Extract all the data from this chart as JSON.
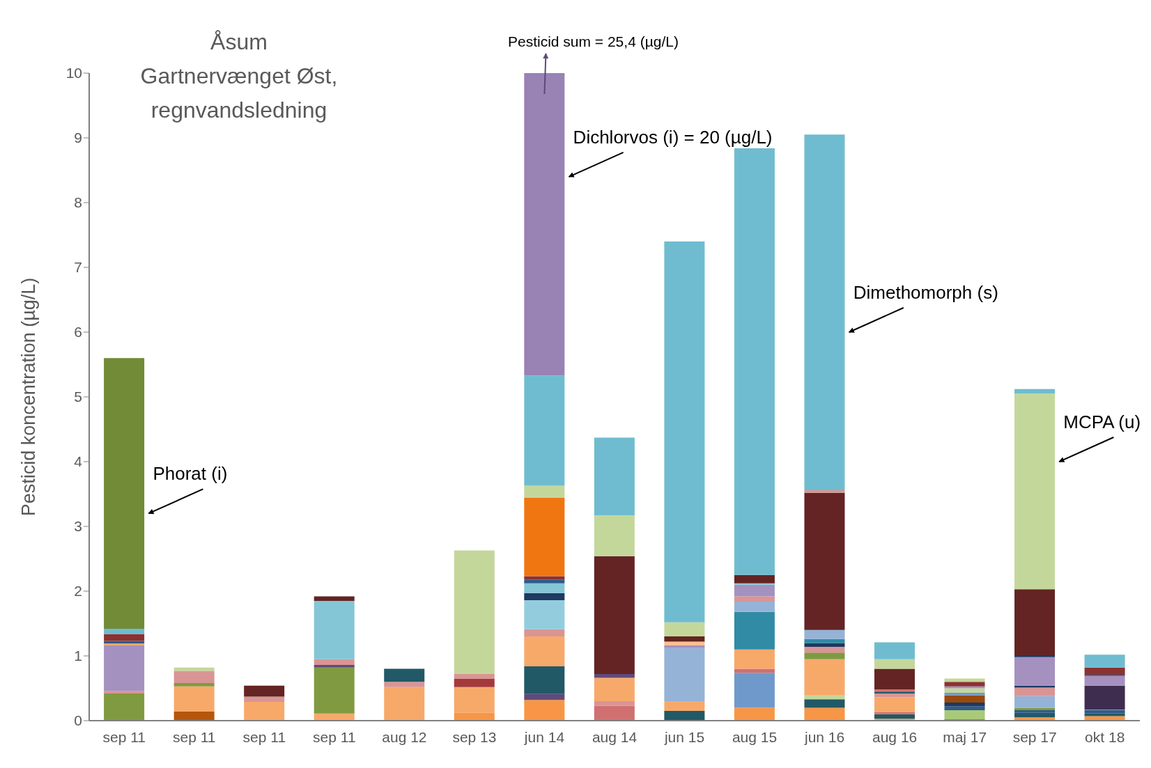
{
  "chart_data": {
    "type": "bar",
    "title": "Åsum\nGartnervænget Øst,\nregnvandsledning",
    "ylabel": "Pesticid koncentration  (µg/L)",
    "categories": [
      "sep 11",
      "sep 11",
      "sep 11",
      "sep 11",
      "aug 12",
      "sep 13",
      "jun 14",
      "aug 14",
      "jun 15",
      "aug 15",
      "jun 16",
      "aug 16",
      "maj 17",
      "sep 17",
      "okt 18"
    ],
    "stacked": true,
    "ylim": [
      0,
      10
    ],
    "yticks": [
      0,
      1,
      2,
      3,
      4,
      5,
      6,
      7,
      8,
      9,
      10
    ],
    "grid": false,
    "legend": false,
    "annotations": [
      "Phorat (i)",
      {
        "text": "Pesticid sum = 25,4 (µg/L)",
        "x": "jun 14",
        "y": 10
      },
      "Dichlorvos (i) = 20 (µg/L)",
      "Dimethomorph (s)",
      "MCPA (u)"
    ],
    "series": [
      {
        "values": [
          0.42,
          0.14,
          0.29,
          0.11,
          0.52,
          0.12,
          0.32,
          0.23,
          0.15,
          0.2,
          0.2,
          0.03,
          0.02,
          0.05,
          0.07
        ],
        "colors": [
          "#7f9a41",
          "#b5560c",
          "#f7a96a",
          "#f7a96a",
          "#f7a96a",
          "#f79646",
          "#f79646",
          "#d07070",
          "#215967",
          "#f79646",
          "#f79646",
          "#f79646",
          "#215967",
          "#f79646",
          "#f79646"
        ]
      },
      {
        "values": [
          0.04,
          0.39,
          0.08,
          0.71,
          0.08,
          0.4,
          0.09,
          0.07,
          0.15,
          0.54,
          0.13,
          0.07,
          0.14,
          0.07,
          0.04
        ],
        "colors": [
          "#d99594",
          "#f7a96a",
          "#d99594",
          "#7f9a41",
          "#d99594",
          "#f7a96a",
          "#604a7b",
          "#d99594",
          "#f7a96a",
          "#7099cb",
          "#215967",
          "#215967",
          "#a9c97a",
          "#215967",
          "#215967"
        ]
      },
      {
        "values": [
          0.7,
          0.05,
          0.17,
          0.04,
          0.2,
          0.13,
          0.43,
          0.36,
          0.82,
          0.06,
          0.06,
          0.03,
          0.06,
          0.04,
          0.05
        ],
        "colors": [
          "#a491bf",
          "#7f9a41",
          "#632423",
          "#604a7b",
          "#215967",
          "#a5393a",
          "#215967",
          "#f7a96a",
          "#95b3d7",
          "#d07070",
          "#c4d79b",
          "#d07070",
          "#2e5c8a",
          "#2e5c8a",
          "#2e5c8a"
        ]
      },
      {
        "values": [
          0.03,
          0.19,
          null,
          0.09,
          null,
          0.07,
          0.46,
          0.06,
          0.04,
          0.3,
          0.56,
          0.23,
          0.06,
          0.04,
          0.01
        ],
        "colors": [
          "#f7a96a",
          "#d99594",
          null,
          "#d99594",
          null,
          "#d99594",
          "#f7a96a",
          "#604a7b",
          "#a491bf",
          "#f7a96a",
          "#f7a96a",
          "#f7a96a",
          "#1f3864",
          "#7f9a41",
          "#d99594"
        ]
      },
      {
        "values": [
          0.04,
          0.05,
          null,
          0.9,
          null,
          1.91,
          0.11,
          1.82,
          0.06,
          0.58,
          0.1,
          0.06,
          0.11,
          0.18,
          0.37
        ],
        "colors": [
          "#2e5c8a",
          "#c4d79b",
          null,
          "#84c5d6",
          null,
          "#c4d79b",
          "#d99594",
          "#632423",
          "#fac090",
          "#318ba5",
          "#7f9a41",
          "#d99594",
          "#9a4a0c",
          "#95b3d7",
          "#3f2d50"
        ]
      },
      {
        "values": [
          0.11,
          null,
          null,
          0.07,
          null,
          null,
          0.45,
          0.63,
          0.08,
          0.16,
          0.09,
          0.03,
          0.04,
          0.13,
          0.15
        ],
        "colors": [
          "#8b3232",
          null,
          null,
          "#632423",
          null,
          null,
          "#93cddd",
          "#c4d79b",
          "#632423",
          "#95b3d7",
          "#d99594",
          "#215967",
          "#7099cb",
          "#d99594",
          "#a491bf"
        ]
      },
      {
        "values": [
          0.08,
          null,
          null,
          null,
          null,
          null,
          0.11,
          1.2,
          0.22,
          0.08,
          0.06,
          0.03,
          0.07,
          0.03,
          0.02
        ],
        "colors": [
          "#6fbcd0",
          null,
          null,
          null,
          null,
          null,
          "#1f3864",
          "#6fbcd0",
          "#c4d79b",
          "#d99594",
          "#1f3864",
          "#d07070",
          "#c4d79b",
          "#1f3864",
          "#2e5c8a"
        ]
      },
      {
        "values": [
          4.18,
          null,
          null,
          null,
          null,
          null,
          0.15,
          null,
          5.88,
          0.18,
          0.06,
          0.32,
          0.03,
          0.44,
          0.11
        ],
        "colors": [
          "#718b36",
          null,
          null,
          null,
          null,
          null,
          "#84c5d6",
          null,
          "#6fbcd0",
          "#a491bf",
          "#318ba5",
          "#632423",
          "#a491bf",
          "#a491bf",
          "#8b3232"
        ]
      },
      {
        "values": [
          null,
          null,
          null,
          null,
          null,
          null,
          0.06,
          null,
          null,
          0.02,
          0.14,
          0.15,
          0.07,
          0.03,
          0.2
        ],
        "colors": [
          null,
          null,
          null,
          null,
          null,
          null,
          "#2e5c8a",
          null,
          null,
          "#84c5d6",
          "#95b3d7",
          "#c4d79b",
          "#8b3232",
          "#1f3864",
          "#6fbcd0"
        ]
      },
      {
        "values": [
          null,
          null,
          null,
          null,
          null,
          null,
          0.05,
          null,
          null,
          0.13,
          2.12,
          0.26,
          0.05,
          1.02,
          null
        ],
        "colors": [
          null,
          null,
          null,
          null,
          null,
          null,
          "#8b3232",
          null,
          null,
          "#632423",
          "#632423",
          "#6fbcd0",
          "#c4d79b",
          "#632423",
          null
        ]
      },
      {
        "values": [
          null,
          null,
          null,
          null,
          null,
          null,
          1.21,
          null,
          null,
          6.59,
          0.04,
          null,
          null,
          3.02,
          null
        ],
        "colors": [
          null,
          null,
          null,
          null,
          null,
          null,
          "#f07611",
          null,
          null,
          "#6fbcd0",
          "#d99594",
          null,
          null,
          "#c4d79b",
          null
        ]
      },
      {
        "values": [
          null,
          null,
          null,
          null,
          null,
          null,
          0.19,
          null,
          null,
          null,
          5.49,
          null,
          null,
          0.07,
          null
        ],
        "colors": [
          null,
          null,
          null,
          null,
          null,
          null,
          "#c4d79b",
          null,
          null,
          null,
          "#6fbcd0",
          null,
          null,
          "#6fbcd0",
          null
        ]
      },
      {
        "values": [
          null,
          null,
          null,
          null,
          null,
          null,
          1.7,
          null,
          null,
          null,
          null,
          null,
          null,
          null,
          null
        ],
        "colors": [
          null,
          null,
          null,
          null,
          null,
          null,
          "#6fbcd0",
          null,
          null,
          null,
          null,
          null,
          null,
          null,
          null
        ]
      },
      {
        "values": [
          null,
          null,
          null,
          null,
          null,
          null,
          4.67,
          null,
          null,
          null,
          null,
          null,
          null,
          null,
          null
        ],
        "colors": [
          null,
          null,
          null,
          null,
          null,
          null,
          "#9982b4",
          null,
          null,
          null,
          null,
          null,
          null,
          null,
          null
        ]
      }
    ]
  }
}
